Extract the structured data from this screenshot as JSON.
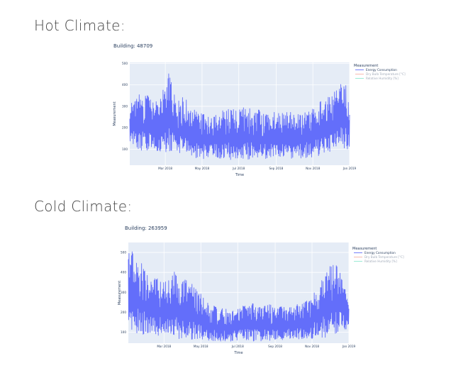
{
  "sections": [
    {
      "heading": "Hot Climate:"
    },
    {
      "heading": "Cold Climate:"
    }
  ],
  "chart_data": [
    {
      "type": "line",
      "title": "Building: 48709",
      "xlabel": "Time",
      "ylabel": "Measurement",
      "x_range": [
        "2018-01-01",
        "2019-01-01"
      ],
      "ylim": [
        25,
        505
      ],
      "y_ticks": [
        100,
        200,
        300,
        400,
        500
      ],
      "x_ticks": [
        "Mar 2018",
        "May 2018",
        "Jul 2018",
        "Sep 2018",
        "Nov 2018",
        "Jan 2019"
      ],
      "grid": true,
      "legend_title": "Measurement",
      "legend_position": "top-right",
      "series": [
        {
          "name": "Energy Consumption",
          "color": "#636efa",
          "visible": true,
          "x": [
            "2018-01-01",
            "2018-01-15",
            "2018-01-29",
            "2018-02-05",
            "2018-02-19",
            "2018-03-05",
            "2018-03-19",
            "2018-04-02",
            "2018-04-16",
            "2018-04-30",
            "2018-05-14",
            "2018-05-28",
            "2018-06-11",
            "2018-06-25",
            "2018-07-09",
            "2018-07-23",
            "2018-08-06",
            "2018-08-20",
            "2018-09-03",
            "2018-09-17",
            "2018-10-01",
            "2018-10-15",
            "2018-10-29",
            "2018-11-12",
            "2018-11-26",
            "2018-12-10",
            "2018-12-24",
            "2019-01-01"
          ],
          "high": [
            330,
            360,
            360,
            330,
            330,
            470,
            330,
            350,
            290,
            270,
            250,
            270,
            290,
            290,
            295,
            290,
            285,
            275,
            275,
            275,
            270,
            270,
            285,
            330,
            345,
            380,
            440,
            300
          ],
          "low": [
            110,
            95,
            85,
            95,
            90,
            80,
            75,
            65,
            60,
            55,
            55,
            55,
            50,
            50,
            50,
            50,
            50,
            55,
            55,
            55,
            55,
            55,
            60,
            70,
            75,
            85,
            100,
            100
          ]
        },
        {
          "name": "Dry Bulb Temperature [°C]",
          "color": "#ef553b",
          "visible": false
        },
        {
          "name": "Relative Humidity [%]",
          "color": "#00cc96",
          "visible": false
        }
      ]
    },
    {
      "type": "line",
      "title": "Building: 263959",
      "xlabel": "Time",
      "ylabel": "Measurement",
      "x_range": [
        "2018-01-01",
        "2019-01-01"
      ],
      "ylim": [
        45,
        550
      ],
      "y_ticks": [
        100,
        200,
        300,
        400,
        500
      ],
      "x_ticks": [
        "Mar 2018",
        "May 2018",
        "Jul 2018",
        "Sep 2018",
        "Nov 2018",
        "Jan 2019"
      ],
      "grid": true,
      "legend_title": "Measurement",
      "legend_position": "top-right",
      "series": [
        {
          "name": "Energy Consumption",
          "color": "#636efa",
          "visible": true,
          "x": [
            "2018-01-01",
            "2018-01-15",
            "2018-01-29",
            "2018-02-05",
            "2018-02-19",
            "2018-03-05",
            "2018-03-19",
            "2018-04-02",
            "2018-04-16",
            "2018-04-30",
            "2018-05-14",
            "2018-05-28",
            "2018-06-11",
            "2018-06-25",
            "2018-07-09",
            "2018-07-23",
            "2018-08-06",
            "2018-08-20",
            "2018-09-03",
            "2018-09-17",
            "2018-10-01",
            "2018-10-15",
            "2018-10-29",
            "2018-11-12",
            "2018-11-26",
            "2018-12-10",
            "2018-12-24",
            "2019-01-01"
          ],
          "high": [
            540,
            480,
            420,
            360,
            380,
            350,
            410,
            360,
            380,
            300,
            240,
            230,
            220,
            210,
            230,
            250,
            230,
            240,
            230,
            230,
            230,
            250,
            280,
            340,
            420,
            460,
            340,
            250
          ],
          "low": [
            110,
            95,
            85,
            80,
            80,
            75,
            70,
            65,
            60,
            60,
            55,
            55,
            55,
            55,
            55,
            55,
            55,
            55,
            55,
            60,
            60,
            60,
            65,
            70,
            75,
            90,
            110,
            100
          ]
        },
        {
          "name": "Dry Bulb Temperature [°C]",
          "color": "#ef553b",
          "visible": false
        },
        {
          "name": "Relative Humidity [%]",
          "color": "#00cc96",
          "visible": false
        }
      ]
    }
  ]
}
